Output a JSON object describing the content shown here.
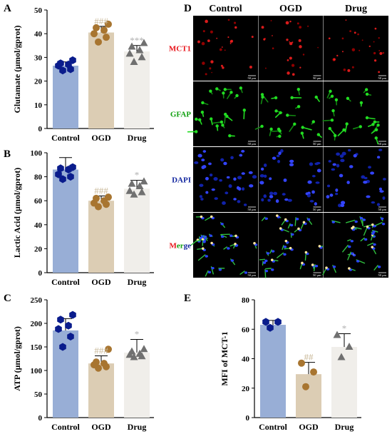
{
  "panels": {
    "A": {
      "letter": "A"
    },
    "B": {
      "letter": "B"
    },
    "C": {
      "letter": "C"
    },
    "D": {
      "letter": "D"
    },
    "E": {
      "letter": "E"
    }
  },
  "colors": {
    "control_bar": "#98AED6",
    "ogd_bar": "#DCCDB4",
    "drug_bar": "#F0EEEA",
    "control_dot": "#0A1C8C",
    "ogd_dot": "#A87530",
    "drug_dot": "#707070",
    "hash_sig": "#C8B797",
    "star_sig": "#B0B0B0",
    "merge_red": "#E8151B",
    "gfap_green": "#10A010",
    "dapi_blue": "#1428A0"
  },
  "chart_data": [
    {
      "id": "A",
      "type": "bar",
      "ylabel": "Glutamate (μmol/gprot)",
      "categories": [
        "Control",
        "OGD",
        "Drug"
      ],
      "values": [
        26.5,
        40.5,
        32.5
      ],
      "errors": [
        1.6,
        2.6,
        2.5
      ],
      "ylim": [
        0,
        50
      ],
      "yticks": [
        0,
        10,
        20,
        30,
        40,
        50
      ],
      "significance": [
        "",
        "###",
        "***"
      ],
      "points": [
        [
          24.5,
          25.0,
          26.5,
          27.0,
          27.5,
          28.8
        ],
        [
          36.5,
          38.5,
          40.0,
          41.5,
          42.5,
          44.0
        ],
        [
          28.0,
          30.0,
          31.5,
          33.0,
          34.5,
          36.0
        ]
      ]
    },
    {
      "id": "B",
      "type": "bar",
      "ylabel": "Lactic Acid (μmol/gprot)",
      "categories": [
        "Control",
        "OGD",
        "Drug"
      ],
      "values": [
        86,
        60,
        70
      ],
      "errors": [
        10,
        4,
        7
      ],
      "ylim": [
        0,
        100
      ],
      "yticks": [
        0,
        20,
        40,
        60,
        80,
        100
      ],
      "significance": [
        "",
        "###",
        "*"
      ],
      "points": [
        [
          78,
          80,
          82,
          86,
          87,
          88
        ],
        [
          55,
          57,
          58,
          60,
          62,
          63
        ],
        [
          65,
          67,
          68,
          72,
          74,
          76
        ]
      ]
    },
    {
      "id": "C",
      "type": "bar",
      "ylabel": "ATP (μmol/gprot)",
      "categories": [
        "Control",
        "OGD",
        "Drug"
      ],
      "values": [
        185,
        115,
        138
      ],
      "errors": [
        25,
        16,
        28
      ],
      "ylim": [
        0,
        250
      ],
      "yticks": [
        0,
        50,
        100,
        150,
        200,
        250
      ],
      "significance": [
        "",
        "###",
        "*"
      ],
      "points": [
        [
          150,
          172,
          188,
          195,
          208,
          218
        ],
        [
          105,
          108,
          112,
          115,
          118,
          145
        ],
        [
          128,
          130,
          133,
          135,
          140,
          145
        ]
      ]
    },
    {
      "id": "E",
      "type": "bar",
      "ylabel": "MFI of MCT-1",
      "categories": [
        "Control",
        "OGD",
        "Drug"
      ],
      "values": [
        63,
        29.5,
        48
      ],
      "errors": [
        3,
        8,
        9
      ],
      "ylim": [
        0,
        80
      ],
      "yticks": [
        0,
        20,
        40,
        60,
        80
      ],
      "significance": [
        "",
        "##",
        "*"
      ],
      "points": [
        [
          61,
          65,
          65
        ],
        [
          21,
          31,
          37
        ],
        [
          41,
          48,
          56
        ]
      ]
    }
  ],
  "micrographs": {
    "columns": [
      "Control",
      "OGD",
      "Drug"
    ],
    "rows": [
      {
        "label": "MCT1",
        "color": "#E8151B"
      },
      {
        "label": "GFAP",
        "color": "#10A010"
      },
      {
        "label": "DAPI",
        "color": "#1428A0"
      }
    ],
    "merge_label_parts": [
      {
        "text": "M",
        "color": "#E8151B"
      },
      {
        "text": "er",
        "color": "#10A010"
      },
      {
        "text": "ge",
        "color": "#1428A0"
      }
    ],
    "scale_text": "50 μm"
  }
}
